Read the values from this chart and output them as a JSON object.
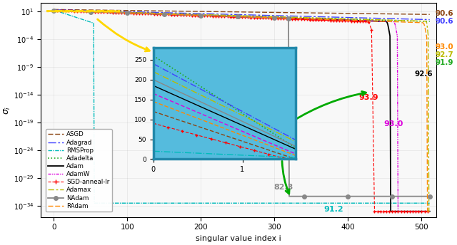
{
  "xlabel": "singular value index i",
  "ylabel": "$\\sigma_i$",
  "n_points": 512,
  "colors": {
    "ASGD": "#8B4513",
    "Adagrad": "#4040FF",
    "RMSProp": "#00BBBB",
    "Adadelta": "#22AA22",
    "Adam": "#000000",
    "AdamW": "#DD00DD",
    "SGD": "#FF0000",
    "Adamax": "#BBBB00",
    "NAdam": "#888888",
    "RAdam": "#FF8800"
  },
  "acc": {
    "ASGD_top": "90.6",
    "Adagrad_top": "90.6",
    "RAdam_right": "93.0",
    "Adamax_right": "92.7",
    "Adadelta_right": "91.9",
    "Adam_right": "92.6",
    "SGD_mid": "93.9",
    "AdamW_mid": "93.0",
    "NAdam_mid": "82.3",
    "RMSProp_bot": "91.2"
  },
  "inset_bg": "#55BBDD",
  "inset_border": "#2288AA"
}
